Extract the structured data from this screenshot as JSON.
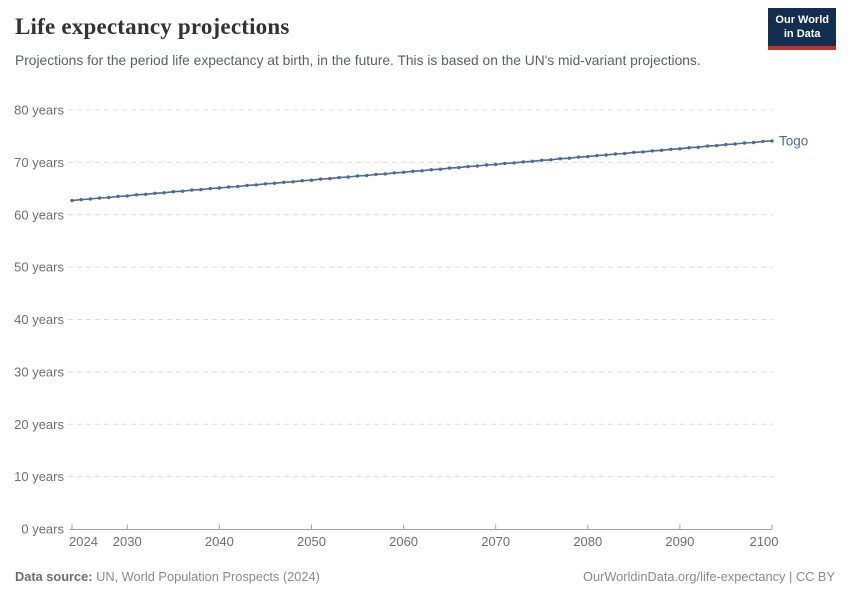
{
  "header": {
    "title": "Life expectancy projections",
    "subtitle": "Projections for the period life expectancy at birth, in the future. This is based on the UN's mid-variant projections.",
    "logo": {
      "line1": "Our World",
      "line2": "in Data"
    }
  },
  "chart_data": {
    "type": "line",
    "title": "Life expectancy projections",
    "xlabel": "",
    "ylabel": "",
    "xlim": [
      2024,
      2100
    ],
    "ylim": [
      0,
      80
    ],
    "grid": "horizontal-dashed",
    "legend_position": "end-of-line-label",
    "x_ticks": [
      2024,
      2030,
      2040,
      2050,
      2060,
      2070,
      2080,
      2090,
      2100
    ],
    "y_ticks": [
      0,
      10,
      20,
      30,
      40,
      50,
      60,
      70,
      80
    ],
    "y_tick_suffix": " years",
    "x": [
      2024,
      2025,
      2026,
      2027,
      2028,
      2029,
      2030,
      2031,
      2032,
      2033,
      2034,
      2035,
      2036,
      2037,
      2038,
      2039,
      2040,
      2041,
      2042,
      2043,
      2044,
      2045,
      2046,
      2047,
      2048,
      2049,
      2050,
      2051,
      2052,
      2053,
      2054,
      2055,
      2056,
      2057,
      2058,
      2059,
      2060,
      2061,
      2062,
      2063,
      2064,
      2065,
      2066,
      2067,
      2068,
      2069,
      2070,
      2071,
      2072,
      2073,
      2074,
      2075,
      2076,
      2077,
      2078,
      2079,
      2080,
      2081,
      2082,
      2083,
      2084,
      2085,
      2086,
      2087,
      2088,
      2089,
      2090,
      2091,
      2092,
      2093,
      2094,
      2095,
      2096,
      2097,
      2098,
      2099,
      2100
    ],
    "series": [
      {
        "name": "Togo",
        "color": "#4c6a9c",
        "values": [
          62.7,
          62.9,
          63.0,
          63.2,
          63.3,
          63.5,
          63.6,
          63.8,
          63.9,
          64.1,
          64.2,
          64.4,
          64.5,
          64.7,
          64.8,
          65.0,
          65.1,
          65.3,
          65.4,
          65.6,
          65.7,
          65.9,
          66.0,
          66.2,
          66.3,
          66.5,
          66.6,
          66.8,
          66.9,
          67.1,
          67.2,
          67.4,
          67.5,
          67.7,
          67.8,
          68.0,
          68.1,
          68.3,
          68.4,
          68.6,
          68.7,
          68.9,
          69.0,
          69.2,
          69.3,
          69.5,
          69.6,
          69.8,
          69.9,
          70.1,
          70.2,
          70.4,
          70.5,
          70.7,
          70.8,
          71.0,
          71.1,
          71.3,
          71.4,
          71.6,
          71.7,
          71.9,
          72.0,
          72.2,
          72.3,
          72.5,
          72.6,
          72.8,
          72.9,
          73.1,
          73.2,
          73.4,
          73.5,
          73.7,
          73.8,
          74.0,
          74.1
        ]
      }
    ]
  },
  "footer": {
    "source_label": "Data source:",
    "source_text": " UN, World Population Prospects (2024)",
    "attribution": "OurWorldinData.org/life-expectancy | CC BY"
  },
  "colors": {
    "line": "#4c6a9c",
    "gridline": "#dcdcdc",
    "axis": "#a1a1a1",
    "tick_text": "#6e6e6e",
    "logo_navy": "#122f52",
    "logo_red": "#c4322b",
    "footer_gray": "#8a8a8a"
  }
}
